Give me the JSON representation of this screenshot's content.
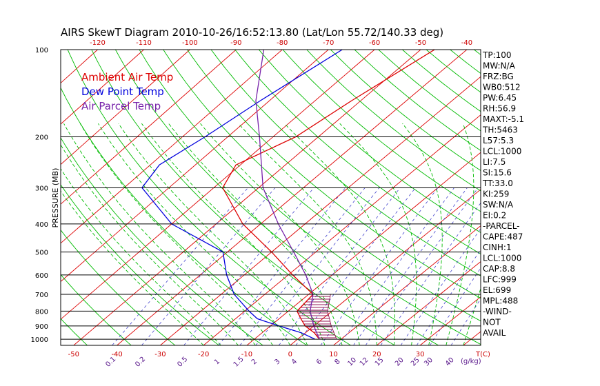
{
  "chart_data": {
    "type": "line",
    "title": "AIRS SkewT Diagram 2010-10-26/16:52:13.80 (Lat/Lon 55.72/140.33 deg)",
    "ylabel": "PRESSURE (MB)",
    "xlabel": "T(C)",
    "mixing_ratio_unit": "(g/kg)",
    "y_scale": "log",
    "ylim": [
      1050,
      100
    ],
    "xlim_bottom": [
      -53,
      44
    ],
    "xlim_top": [
      -128,
      -37
    ],
    "pressure_ticks": [
      100,
      200,
      300,
      400,
      500,
      600,
      700,
      800,
      900,
      1000
    ],
    "temp_ticks_bottom": [
      -50,
      -40,
      -30,
      -20,
      -10,
      0,
      10,
      20,
      30
    ],
    "temp_ticks_top": [
      -120,
      -110,
      -100,
      -90,
      -80,
      -70,
      -60,
      -50,
      -40
    ],
    "mixing_ratio_ticks": [
      "0.1",
      "0.2",
      "0.5",
      "1",
      "1.5",
      "2",
      "3",
      "4",
      "6",
      "8",
      "10",
      "12",
      "15",
      "20",
      "25",
      "30",
      "40"
    ],
    "grid": true,
    "legend_position": "top-left",
    "series": [
      {
        "name": "Ambient Air Temp",
        "color": "#dd0000",
        "points": [
          {
            "p": 100,
            "t": -47
          },
          {
            "p": 150,
            "t": -52
          },
          {
            "p": 200,
            "t": -55
          },
          {
            "p": 250,
            "t": -61
          },
          {
            "p": 300,
            "t": -58
          },
          {
            "p": 400,
            "t": -44
          },
          {
            "p": 500,
            "t": -30
          },
          {
            "p": 600,
            "t": -19
          },
          {
            "p": 700,
            "t": -9
          },
          {
            "p": 800,
            "t": -8
          },
          {
            "p": 850,
            "t": -5
          },
          {
            "p": 900,
            "t": -2
          },
          {
            "p": 950,
            "t": 2
          },
          {
            "p": 1000,
            "t": 5
          }
        ]
      },
      {
        "name": "Dew Point Temp",
        "color": "#0000dd",
        "points": [
          {
            "p": 100,
            "t": -67
          },
          {
            "p": 150,
            "t": -72
          },
          {
            "p": 200,
            "t": -75
          },
          {
            "p": 250,
            "t": -78
          },
          {
            "p": 300,
            "t": -76
          },
          {
            "p": 400,
            "t": -60
          },
          {
            "p": 500,
            "t": -41
          },
          {
            "p": 600,
            "t": -34
          },
          {
            "p": 700,
            "t": -27
          },
          {
            "p": 800,
            "t": -19
          },
          {
            "p": 850,
            "t": -15
          },
          {
            "p": 900,
            "t": -8
          },
          {
            "p": 950,
            "t": -1
          },
          {
            "p": 1000,
            "t": 4
          }
        ]
      },
      {
        "name": "Air Parcel Temp",
        "color": "#7722aa",
        "points": [
          {
            "p": 100,
            "t": -84
          },
          {
            "p": 150,
            "t": -73
          },
          {
            "p": 200,
            "t": -63
          },
          {
            "p": 300,
            "t": -49
          },
          {
            "p": 400,
            "t": -36
          },
          {
            "p": 500,
            "t": -25
          },
          {
            "p": 600,
            "t": -16
          },
          {
            "p": 700,
            "t": -9
          },
          {
            "p": 800,
            "t": -5
          },
          {
            "p": 900,
            "t": 0
          },
          {
            "p": 1000,
            "t": 5
          }
        ]
      }
    ]
  },
  "indices": [
    "TP:100",
    "MW:N/A",
    "FRZ:BG",
    "WB0:512",
    "PW:6.45",
    "RH:56.9",
    "MAXT:-5.1",
    "TH:5463",
    "L57:5.3",
    "LCL:1000",
    "LI:7.5",
    "SI:15.6",
    "TT:33.0",
    "KI:259",
    "SW:N/A",
    "EI:0.2",
    "-PARCEL-",
    "CAPE:487",
    "CINH:1",
    "LCL:1000",
    "CAP:8.8",
    "LFC:999",
    "EL:699",
    "MPL:488",
    "-WIND-",
    "NOT",
    "AVAIL"
  ],
  "colors": {
    "isotherm": "#dd0000",
    "dry_adiabat": "#00bb00",
    "moist_adiabat": "#00bb00",
    "mixing_ratio": "#4040cc",
    "axis_text": "#cc0000",
    "mixing_text": "#551188",
    "hatch": "#880044"
  }
}
